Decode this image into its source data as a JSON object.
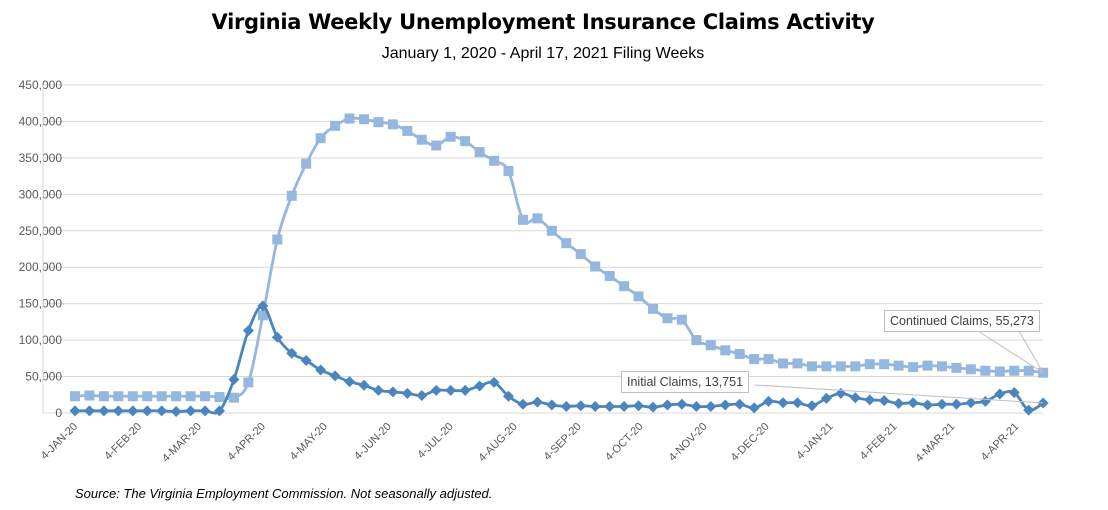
{
  "chart_data": {
    "type": "line",
    "title": "Virginia Weekly Unemployment Insurance Claims Activity",
    "subtitle": "January 1, 2020 - April 17, 2021 Filing Weeks",
    "source": "Source: The Virginia Employment Commission. Not seasonally adjusted.",
    "ylim": [
      0,
      450000
    ],
    "yticks": [
      "0",
      "50,000",
      "100,000",
      "150,000",
      "200,000",
      "250,000",
      "300,000",
      "350,000",
      "400,000",
      "450,000"
    ],
    "ytick_values": [
      0,
      50000,
      100000,
      150000,
      200000,
      250000,
      300000,
      350000,
      400000,
      450000
    ],
    "xticks": [
      {
        "label": "4-JAN-20",
        "week": 0
      },
      {
        "label": "4-FEB-20",
        "week": 4.43
      },
      {
        "label": "4-MAR-20",
        "week": 8.57
      },
      {
        "label": "4-APR-20",
        "week": 13
      },
      {
        "label": "4-MAY-20",
        "week": 17.29
      },
      {
        "label": "4-JUN-20",
        "week": 21.71
      },
      {
        "label": "4-JUL-20",
        "week": 26
      },
      {
        "label": "4-AUG-20",
        "week": 30.43
      },
      {
        "label": "4-SEP-20",
        "week": 34.86
      },
      {
        "label": "4-OCT-20",
        "week": 39.14
      },
      {
        "label": "4-NOV-20",
        "week": 43.57
      },
      {
        "label": "4-DEC-20",
        "week": 47.86
      },
      {
        "label": "4-JAN-21",
        "week": 52.29
      },
      {
        "label": "4-FEB-21",
        "week": 56.71
      },
      {
        "label": "4-MAR-21",
        "week": 60.71
      },
      {
        "label": "4-APR-21",
        "week": 65.14
      }
    ],
    "grid": true,
    "series": [
      {
        "name": "Continued Claims",
        "color": "#95b7de",
        "marker": "square",
        "annotation": "Continued Claims, 55,273",
        "values": [
          23000,
          24000,
          23000,
          23000,
          23000,
          23000,
          23000,
          23000,
          23000,
          23000,
          22000,
          21000,
          42000,
          134000,
          238000,
          298000,
          342000,
          377000,
          394000,
          404000,
          403000,
          399000,
          396000,
          387000,
          375000,
          367000,
          379000,
          373000,
          358000,
          346000,
          332000,
          265000,
          267000,
          250000,
          233000,
          218000,
          201000,
          188000,
          174000,
          160000,
          143000,
          130000,
          128000,
          100000,
          93000,
          86000,
          81000,
          74000,
          74000,
          68000,
          68000,
          64000,
          64000,
          64000,
          64000,
          67000,
          67000,
          65000,
          63000,
          65000,
          64000,
          62000,
          60000,
          58000,
          57000,
          58000,
          58000,
          55273
        ]
      },
      {
        "name": "Initial Claims",
        "color": "#4a86bd",
        "marker": "diamond",
        "annotation": "Initial Claims, 13,751",
        "values": [
          3000,
          3000,
          3000,
          3000,
          3000,
          3000,
          3000,
          2000,
          3000,
          3000,
          3000,
          46000,
          113000,
          147000,
          104000,
          82000,
          72000,
          59000,
          51000,
          43000,
          38000,
          31000,
          29000,
          27000,
          24000,
          31000,
          31000,
          31000,
          37000,
          42000,
          23000,
          12000,
          15000,
          11000,
          9000,
          10000,
          9000,
          9000,
          9000,
          10000,
          8000,
          11000,
          12000,
          9000,
          9000,
          11000,
          12000,
          7000,
          16000,
          14000,
          14000,
          10000,
          20000,
          27000,
          21000,
          18000,
          17000,
          13000,
          14000,
          11000,
          12000,
          12000,
          14000,
          16000,
          26000,
          28000,
          4000,
          13751
        ]
      }
    ]
  }
}
